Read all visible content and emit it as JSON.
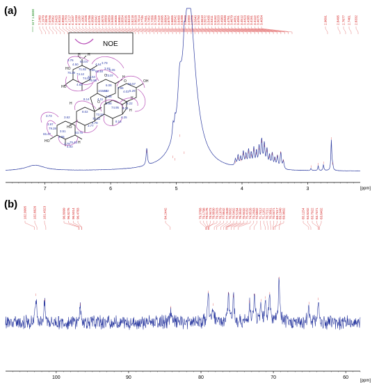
{
  "chart_data": [
    {
      "panel_label": "(a)",
      "type": "line",
      "title": "",
      "xlabel": "[ppm]",
      "xlim": [
        7.6,
        2.2
      ],
      "x_reversed": true,
      "x_ticks": [
        "7",
        "6",
        "5",
        "4",
        "3"
      ],
      "x_tick_values": [
        7,
        6,
        5,
        4,
        3
      ],
      "grid": false,
      "legend": "none",
      "line_color": "#2b3aa0",
      "peak_label_color": "#d42020",
      "ref_label_color": "#1a8a1a",
      "peak_labels": [
        "7.2460",
        "7.1979",
        "7.0876",
        "7.0756",
        "7.0562",
        "7.0425",
        "4.9234",
        "4.8953",
        "4.1753",
        "4.1717",
        "4.1537",
        "4.1233",
        "4.1109",
        "4.1062",
        "4.1026",
        "4.0786",
        "4.0580",
        "4.0342",
        "4.0201",
        "4.0070",
        "3.9809",
        "3.9659",
        "3.9493",
        "3.9005",
        "3.8984",
        "3.8554",
        "3.8535",
        "3.8419",
        "3.8218",
        "3.8028",
        "3.7814",
        "3.7745",
        "3.7551",
        "3.7452",
        "3.7356",
        "3.7289",
        "3.7119",
        "3.6995",
        "3.6804",
        "3.6757",
        "3.6655",
        "3.6542",
        "3.6400",
        "3.6288",
        "3.6009",
        "3.5900",
        "3.5856",
        "3.5840",
        "3.5750",
        "3.5610",
        "3.5572",
        "3.5435",
        "3.5311",
        "3.5162",
        "3.5020",
        "3.4983",
        "3.4848",
        "3.4761",
        "3.4679",
        "3.4651",
        "3.4591",
        "3.4512",
        "3.4423",
        "3.4385",
        "3.4161",
        "3.4110",
        "3.4075",
        "3.4054",
        "2.9691",
        "2.8495",
        "2.7677",
        "2.7461",
        "2.6332"
      ],
      "ref_label": "M T 1.8690",
      "peaks": [
        {
          "x": 7.15,
          "y": 0.085,
          "w": 0.18
        },
        {
          "x": 4.81,
          "y": 2.6,
          "w": 0.12
        },
        {
          "x": 4.95,
          "y": 0.5,
          "w": 0.03
        },
        {
          "x": 5.45,
          "y": 0.26,
          "w": 0.012
        },
        {
          "x": 5.05,
          "y": 0.18,
          "w": 0.012
        },
        {
          "x": 5.02,
          "y": 0.14,
          "w": 0.01
        },
        {
          "x": 4.88,
          "y": 0.24,
          "w": 0.01
        },
        {
          "x": 4.1,
          "y": 0.1,
          "w": 0.012
        },
        {
          "x": 4.06,
          "y": 0.16,
          "w": 0.012
        },
        {
          "x": 4.02,
          "y": 0.13,
          "w": 0.012
        },
        {
          "x": 3.98,
          "y": 0.22,
          "w": 0.012
        },
        {
          "x": 3.94,
          "y": 0.18,
          "w": 0.012
        },
        {
          "x": 3.9,
          "y": 0.25,
          "w": 0.012
        },
        {
          "x": 3.86,
          "y": 0.2,
          "w": 0.012
        },
        {
          "x": 3.82,
          "y": 0.28,
          "w": 0.012
        },
        {
          "x": 3.78,
          "y": 0.23,
          "w": 0.012
        },
        {
          "x": 3.74,
          "y": 0.3,
          "w": 0.012
        },
        {
          "x": 3.7,
          "y": 0.41,
          "w": 0.012
        },
        {
          "x": 3.66,
          "y": 0.35,
          "w": 0.012
        },
        {
          "x": 3.62,
          "y": 0.27,
          "w": 0.012
        },
        {
          "x": 3.58,
          "y": 0.18,
          "w": 0.012
        },
        {
          "x": 3.54,
          "y": 0.22,
          "w": 0.012
        },
        {
          "x": 3.5,
          "y": 0.15,
          "w": 0.012
        },
        {
          "x": 3.46,
          "y": 0.19,
          "w": 0.012
        },
        {
          "x": 3.41,
          "y": 0.25,
          "w": 0.012
        },
        {
          "x": 3.37,
          "y": 0.12,
          "w": 0.012
        },
        {
          "x": 2.95,
          "y": 0.03,
          "w": 0.008
        },
        {
          "x": 2.84,
          "y": 0.07,
          "w": 0.008
        },
        {
          "x": 2.76,
          "y": 0.09,
          "w": 0.008
        },
        {
          "x": 2.64,
          "y": 0.46,
          "w": 0.008
        },
        {
          "x": 2.62,
          "y": 0.08,
          "w": 0.008
        }
      ],
      "inset": {
        "legend_label": "NOE",
        "labels": [
          "3.76",
          "4.50",
          "64.04",
          "71.82",
          "74.12",
          "75.39",
          "74.02",
          "3.88",
          "4.83",
          "65.48",
          "72.54",
          "76.96",
          "4.64",
          "3.79",
          "3.92",
          "5.05",
          "73.07",
          "3.96",
          "4.03",
          "66.57",
          "5.29",
          "5.22",
          "4.04",
          "4.02",
          "102.62",
          "8.14",
          "8.02",
          "70.10",
          "73.24",
          "4.78",
          "3.77",
          "63.75",
          "3.73",
          "3.62",
          "3.97",
          "79.28",
          "65.47",
          "3.51",
          "3.86",
          "3.79",
          "4.93",
          "75.43",
          "3.98",
          "74.95",
          "4.11",
          "8.16",
          "4.25",
          "6.08",
          "3.36"
        ]
      }
    },
    {
      "panel_label": "(b)",
      "type": "line",
      "title": "",
      "xlabel": "[ppm]",
      "xlim": [
        107,
        58
      ],
      "x_reversed": true,
      "x_ticks": [
        "100",
        "90",
        "80",
        "70",
        "60"
      ],
      "x_tick_values": [
        100,
        90,
        80,
        70,
        60
      ],
      "grid": false,
      "legend": "none",
      "line_color": "#2b3aa0",
      "peak_label_color": "#d42020",
      "peak_labels": [
        "102.9995",
        "102.6626",
        "101.4323",
        "96.8999",
        "96.8276",
        "96.5014",
        "96.4783",
        "84.2442",
        "79.3768",
        "79.1798",
        "79.0176",
        "78.9473",
        "78.8830",
        "79.2923",
        "78.1679",
        "77.8642",
        "77.2849",
        "76.8932",
        "76.5402",
        "76.5284",
        "76.3542",
        "75.8432",
        "75.4152",
        "74.8526",
        "73.2563",
        "72.6802",
        "71.7412",
        "71.1161",
        "70.7211",
        "70.3561",
        "70.0471",
        "69.7417",
        "69.1940",
        "69.9602",
        "65.1154",
        "64.8202",
        "63.7922",
        "63.7471",
        "63.6402"
      ],
      "peaks": [
        {
          "x": 102.8,
          "y": 0.9
        },
        {
          "x": 101.6,
          "y": 0.7
        },
        {
          "x": 96.7,
          "y": 0.55
        },
        {
          "x": 84.2,
          "y": 0.45
        },
        {
          "x": 79.0,
          "y": 1.0
        },
        {
          "x": 78.3,
          "y": 0.55
        },
        {
          "x": 76.2,
          "y": 0.95
        },
        {
          "x": 75.5,
          "y": 0.85
        },
        {
          "x": 73.3,
          "y": 0.65
        },
        {
          "x": 72.6,
          "y": 0.9
        },
        {
          "x": 71.7,
          "y": 0.7
        },
        {
          "x": 71.1,
          "y": 0.8
        },
        {
          "x": 70.5,
          "y": 0.95
        },
        {
          "x": 69.2,
          "y": 1.5
        },
        {
          "x": 65.1,
          "y": 0.6
        },
        {
          "x": 63.8,
          "y": 0.75
        }
      ]
    }
  ]
}
